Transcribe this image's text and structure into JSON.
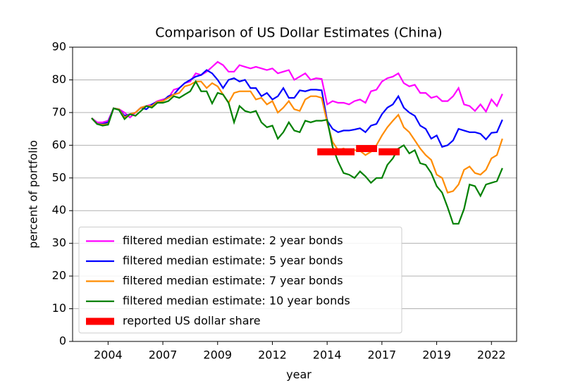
{
  "chart_data": {
    "type": "line",
    "title": "Comparison of US Dollar Estimates (China)",
    "xlabel": "year",
    "ylabel": "percent of portfolio",
    "x": [
      2003.75,
      2004,
      2004.25,
      2004.5,
      2004.75,
      2005,
      2005.25,
      2005.5,
      2005.75,
      2006,
      2006.25,
      2006.5,
      2006.75,
      2007,
      2007.25,
      2007.5,
      2007.75,
      2008,
      2008.25,
      2008.5,
      2008.75,
      2009,
      2009.25,
      2009.5,
      2009.75,
      2010,
      2010.25,
      2010.5,
      2010.75,
      2011,
      2011.25,
      2011.5,
      2011.75,
      2012,
      2012.25,
      2012.5,
      2012.75,
      2013,
      2013.25,
      2013.5,
      2013.75,
      2014,
      2014.25,
      2014.5,
      2014.75,
      2015,
      2015.25,
      2015.5,
      2015.75,
      2016,
      2016.25,
      2016.5,
      2016.75,
      2017,
      2017.25,
      2017.5,
      2017.75,
      2018,
      2018.25,
      2018.5,
      2018.75,
      2019,
      2019.25,
      2019.5,
      2019.75,
      2020,
      2020.25,
      2020.5,
      2020.75,
      2021,
      2021.25,
      2021.5,
      2021.75,
      2022,
      2022.25,
      2022.5
    ],
    "series": [
      {
        "name": "filtered median estimate: 2 year bonds",
        "color": "#ff00ff",
        "values": [
          68.3,
          67,
          67,
          67.5,
          71.3,
          71,
          70,
          68.5,
          70,
          71.5,
          72,
          72.5,
          73.5,
          74,
          74.5,
          77,
          77.5,
          79,
          79.5,
          82,
          81.5,
          82.5,
          84,
          85.5,
          84.5,
          82.5,
          82.5,
          84.5,
          84,
          83.5,
          84,
          83.5,
          83,
          83.5,
          82,
          82.5,
          83,
          80,
          81,
          82,
          80,
          80.5,
          80.3,
          72.5,
          73.5,
          73,
          73,
          72.5,
          73.5,
          74,
          73,
          76.5,
          77,
          79.5,
          80.5,
          81,
          82,
          79,
          78,
          78.5,
          76,
          76,
          74.5,
          75,
          73.5,
          73.5,
          75,
          77.5,
          72.5,
          72,
          70.5,
          72.5,
          70.3,
          74,
          72,
          75.7
        ]
      },
      {
        "name": "filtered median estimate: 5 year bonds",
        "color": "#0000ff",
        "values": [
          68.3,
          66.5,
          66.5,
          67,
          71.3,
          71,
          69,
          69.5,
          70,
          71.5,
          71,
          72.5,
          73.3,
          73.5,
          75,
          75.5,
          77.5,
          79,
          80,
          81,
          81.5,
          83,
          82,
          80,
          77.5,
          80,
          80.5,
          79.5,
          80,
          77.5,
          77.5,
          75,
          76,
          74,
          75,
          77.5,
          74.5,
          74.5,
          76.8,
          76.5,
          77,
          77,
          76.8,
          67.5,
          65,
          64,
          64.5,
          64.5,
          64.8,
          65.2,
          64,
          66,
          66.5,
          69.5,
          71.5,
          72.5,
          75,
          71.5,
          70,
          69,
          66,
          65,
          62,
          63,
          59.5,
          60,
          61.5,
          65,
          64.5,
          64,
          64,
          63.5,
          61.8,
          63.8,
          64,
          67.8
        ]
      },
      {
        "name": "filtered median estimate: 7 year bonds",
        "color": "#ff8c00",
        "values": [
          68.3,
          66.5,
          66.3,
          66.5,
          71.3,
          71,
          68.5,
          69.5,
          70,
          71.5,
          72,
          72,
          73.3,
          73.5,
          74.5,
          75.5,
          76,
          78,
          78.5,
          79.5,
          79.5,
          77.5,
          79,
          78,
          75.5,
          73,
          76,
          76.5,
          76.5,
          76.5,
          74,
          74.5,
          72.5,
          73.5,
          70,
          71.5,
          73.5,
          71,
          70.5,
          74,
          75,
          75,
          74.5,
          67,
          61,
          58.5,
          59,
          58,
          58.5,
          58.3,
          57,
          58,
          60,
          63,
          65.5,
          67.5,
          69.3,
          65.5,
          64,
          61.5,
          59,
          57,
          55.5,
          51,
          50,
          45.5,
          46,
          48,
          52.5,
          53.5,
          51.5,
          51,
          52.5,
          56,
          57,
          62
        ]
      },
      {
        "name": "filtered median estimate: 10 year bonds",
        "color": "#008000",
        "values": [
          68.3,
          66.5,
          66,
          66.3,
          71.3,
          70.8,
          68,
          69.5,
          69,
          70.5,
          72,
          71.5,
          73,
          73,
          73.5,
          75,
          74.5,
          75.5,
          76.5,
          79.5,
          76.5,
          76.5,
          72.8,
          76,
          75.5,
          73,
          67,
          72,
          70.5,
          70,
          70.5,
          67,
          65.5,
          66,
          62,
          64,
          67,
          64.5,
          64,
          67.5,
          67,
          67.5,
          67.5,
          67.8,
          59.5,
          55,
          51.5,
          51,
          50,
          52,
          50.5,
          48.5,
          50,
          50,
          54,
          56,
          59,
          60,
          57.5,
          58.5,
          54.5,
          54,
          51.5,
          47.5,
          45.5,
          41,
          36,
          36,
          40.5,
          48,
          47.5,
          44.5,
          48,
          48.5,
          49,
          53
        ]
      }
    ],
    "reported": {
      "name": "reported US dollar share",
      "color": "#ff0000",
      "x": [
        [
          2014.05,
          2015.75
        ],
        [
          2015.82,
          2016.78
        ],
        [
          2016.85,
          2017.81
        ]
      ],
      "values": [
        58,
        59,
        58
      ]
    },
    "xlim": [
      2002.88,
      2023.15
    ],
    "ylim": [
      0,
      90
    ],
    "xticks": [
      {
        "value": 2004.5,
        "label": "2004"
      },
      2007,
      {
        "value": 2009.5,
        "label": "2009"
      },
      2012,
      {
        "value": 2014.5,
        "label": "2014"
      },
      2017,
      {
        "value": 2019.5,
        "label": "2019"
      },
      2022
    ],
    "yticks": [
      0,
      10,
      20,
      30,
      40,
      50,
      60,
      70,
      80,
      90
    ],
    "grid": "y",
    "legend": "lower left"
  }
}
